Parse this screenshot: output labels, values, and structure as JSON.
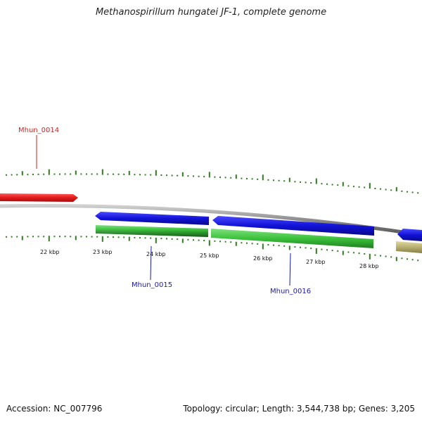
{
  "title": "Methanospirillum hungatei JF-1, complete genome",
  "footer": {
    "accession": "Accession: NC_007796",
    "summary": "Topology: circular; Length: 3,544,738 bp; Genes: 3,205"
  },
  "colors": {
    "backbone": "#8a8a8a",
    "tick": "#2e7d1e",
    "red_gene": "#e21a1a",
    "blue_gene": "#1212d8",
    "green_gene": "#3cc23c",
    "dark_green_gene": "#2a8a2a",
    "khaki_gene": "#b8b070"
  },
  "axis_labels": [
    {
      "text": "22 kbp"
    },
    {
      "text": "23 kbp"
    },
    {
      "text": "24 kbp"
    },
    {
      "text": "25 kbp"
    },
    {
      "text": "26 kbp"
    },
    {
      "text": "27 kbp"
    },
    {
      "text": "28 kbp"
    }
  ],
  "gene_labels": [
    {
      "text": "Mhun_0014",
      "color": "#e21a1a"
    },
    {
      "text": "Mhun_0015",
      "color": "#1a1aa8"
    },
    {
      "text": "Mhun_0016",
      "color": "#1a1aa8"
    }
  ]
}
